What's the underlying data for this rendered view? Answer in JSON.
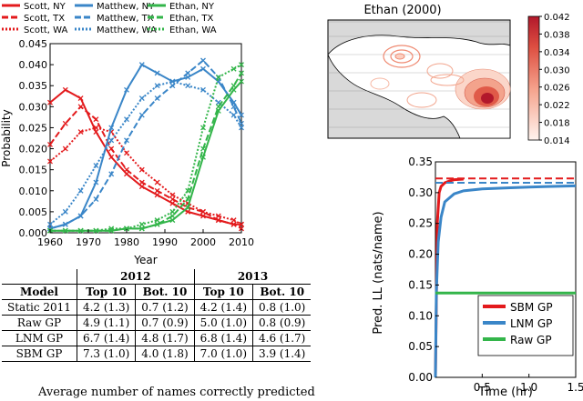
{
  "chart_data": [
    {
      "type": "line",
      "xlabel": "Year",
      "ylabel": "Probability",
      "xlim": [
        1960,
        2010
      ],
      "ylim": [
        0.0,
        0.045
      ],
      "xticks": [
        "1960",
        "1970",
        "1980",
        "1990",
        "2000",
        "2010"
      ],
      "yticks": [
        "0.000",
        "0.005",
        "0.010",
        "0.015",
        "0.020",
        "0.025",
        "0.030",
        "0.035",
        "0.040",
        "0.045"
      ],
      "legend": [
        {
          "label": "Scott, NY",
          "color": "#e31a1c",
          "style": "solid"
        },
        {
          "label": "Scott, TX",
          "color": "#e31a1c",
          "style": "dashed"
        },
        {
          "label": "Scott, WA",
          "color": "#e31a1c",
          "style": "dotted"
        },
        {
          "label": "Matthew, NY",
          "color": "#3a86c8",
          "style": "solid"
        },
        {
          "label": "Matthew, TX",
          "color": "#3a86c8",
          "style": "dashed"
        },
        {
          "label": "Matthew, WA",
          "color": "#3a86c8",
          "style": "dotted"
        },
        {
          "label": "Ethan, NY",
          "color": "#33b54a",
          "style": "solid"
        },
        {
          "label": "Ethan, TX",
          "color": "#33b54a",
          "style": "dashed"
        },
        {
          "label": "Ethan, WA",
          "color": "#33b54a",
          "style": "dotted"
        }
      ],
      "x": [
        1960,
        1964,
        1968,
        1972,
        1976,
        1980,
        1984,
        1988,
        1992,
        1996,
        2000,
        2004,
        2008,
        2010
      ],
      "series": [
        {
          "name": "Scott, NY",
          "values": [
            0.031,
            0.034,
            0.032,
            0.024,
            0.018,
            0.014,
            0.011,
            0.009,
            0.007,
            0.005,
            0.004,
            0.003,
            0.002,
            0.002
          ]
        },
        {
          "name": "Scott, TX",
          "values": [
            0.021,
            0.026,
            0.03,
            0.027,
            0.02,
            0.015,
            0.012,
            0.01,
            0.008,
            0.006,
            0.005,
            0.003,
            0.002,
            0.001
          ]
        },
        {
          "name": "Scott, WA",
          "values": [
            0.017,
            0.02,
            0.024,
            0.025,
            0.024,
            0.019,
            0.015,
            0.012,
            0.009,
            0.007,
            0.005,
            0.004,
            0.003,
            0.002
          ]
        },
        {
          "name": "Matthew, NY",
          "values": [
            0.001,
            0.002,
            0.004,
            0.012,
            0.025,
            0.034,
            0.04,
            0.038,
            0.036,
            0.037,
            0.039,
            0.036,
            0.031,
            0.028
          ]
        },
        {
          "name": "Matthew, TX",
          "values": [
            0.001,
            0.002,
            0.004,
            0.008,
            0.014,
            0.022,
            0.028,
            0.032,
            0.035,
            0.038,
            0.041,
            0.037,
            0.03,
            0.026
          ]
        },
        {
          "name": "Matthew, WA",
          "values": [
            0.002,
            0.005,
            0.01,
            0.016,
            0.022,
            0.027,
            0.032,
            0.035,
            0.036,
            0.035,
            0.034,
            0.031,
            0.028,
            0.025
          ]
        },
        {
          "name": "Ethan, NY",
          "values": [
            0.0005,
            0.0005,
            0.0005,
            0.0005,
            0.0005,
            0.001,
            0.001,
            0.002,
            0.003,
            0.006,
            0.018,
            0.029,
            0.034,
            0.036
          ]
        },
        {
          "name": "Ethan, TX",
          "values": [
            0.0005,
            0.0005,
            0.0005,
            0.0005,
            0.0005,
            0.001,
            0.001,
            0.002,
            0.004,
            0.008,
            0.02,
            0.03,
            0.035,
            0.038
          ]
        },
        {
          "name": "Ethan, WA",
          "values": [
            0.0005,
            0.0005,
            0.0005,
            0.0005,
            0.001,
            0.001,
            0.002,
            0.003,
            0.005,
            0.01,
            0.025,
            0.037,
            0.039,
            0.04
          ]
        }
      ]
    },
    {
      "type": "heatmap",
      "title": "Ethan (2000)",
      "colorbar_ticks": [
        "0.014",
        "0.018",
        "0.022",
        "0.026",
        "0.030",
        "0.034",
        "0.038",
        "0.042"
      ],
      "colorbar_range": [
        0.014,
        0.042
      ],
      "colors": {
        "low": "#fff3ee",
        "high": "#b2182b",
        "land": "#ffffff",
        "background": "#d9d9d9"
      }
    },
    {
      "type": "line",
      "xlabel": "Time (hr)",
      "ylabel": "Pred. LL (nats/name)",
      "xlim": [
        0.0,
        1.5
      ],
      "ylim": [
        0.0,
        0.35
      ],
      "xticks": [
        "0.5",
        "1.0",
        "1.5"
      ],
      "yticks": [
        "0.00",
        "0.05",
        "0.10",
        "0.15",
        "0.20",
        "0.25",
        "0.30",
        "0.35"
      ],
      "legend": [
        {
          "label": "SBM GP",
          "color": "#e31a1c"
        },
        {
          "label": "LNM GP",
          "color": "#3a86c8"
        },
        {
          "label": "Raw GP",
          "color": "#33b54a"
        }
      ],
      "series": [
        {
          "name": "SBM GP",
          "x": [
            0.0,
            0.02,
            0.04,
            0.06,
            0.1,
            0.15,
            0.2,
            0.3
          ],
          "values": [
            0.0,
            0.25,
            0.3,
            0.31,
            0.316,
            0.319,
            0.321,
            0.322
          ],
          "final": 0.323
        },
        {
          "name": "LNM GP",
          "x": [
            0.0,
            0.01,
            0.03,
            0.06,
            0.1,
            0.2,
            0.3,
            0.5,
            0.8,
            1.0,
            1.2,
            1.5
          ],
          "values": [
            0.0,
            0.14,
            0.22,
            0.26,
            0.285,
            0.298,
            0.303,
            0.306,
            0.308,
            0.309,
            0.31,
            0.311
          ],
          "final": 0.316
        },
        {
          "name": "Raw GP",
          "x": [
            0.0,
            1.5
          ],
          "values": [
            0.137,
            0.137
          ]
        }
      ]
    }
  ],
  "table": {
    "year_headers": [
      "2012",
      "2013"
    ],
    "columns": [
      "Model",
      "Top 10",
      "Bot. 10",
      "Top 10",
      "Bot. 10"
    ],
    "rows": [
      [
        "Static 2011",
        "4.2 (1.3)",
        "0.7 (1.2)",
        "4.2 (1.4)",
        "0.8 (1.0)"
      ],
      [
        "Raw GP",
        "4.9 (1.1)",
        "0.7 (0.9)",
        "5.0 (1.0)",
        "0.8 (0.9)"
      ],
      [
        "LNM GP",
        "6.7 (1.4)",
        "4.8 (1.7)",
        "6.8 (1.4)",
        "4.6 (1.7)"
      ],
      [
        "SBM GP",
        "7.3 (1.0)",
        "4.0 (1.8)",
        "7.0 (1.0)",
        "3.9 (1.4)"
      ]
    ],
    "caption": "Average number of names correctly predicted"
  }
}
